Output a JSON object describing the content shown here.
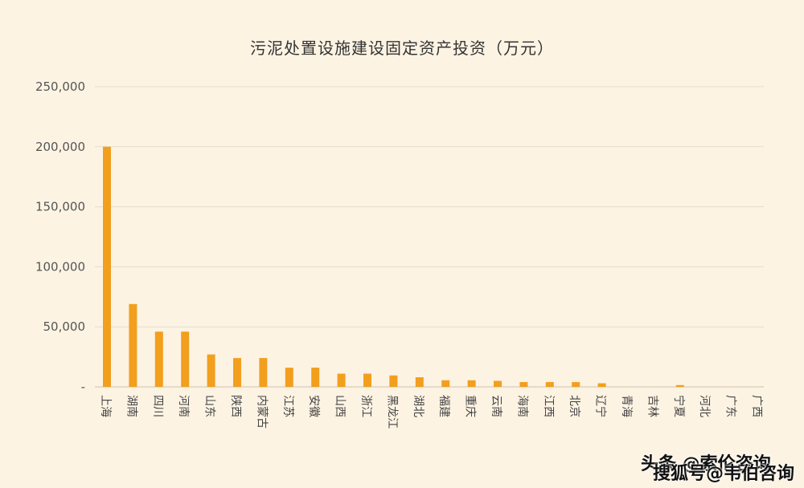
{
  "chart_data": {
    "type": "bar",
    "title": "污泥处置设施建设固定资产投资（万元）",
    "xlabel": "",
    "ylabel": "",
    "ylim": [
      0,
      250000
    ],
    "yticks": [
      0,
      50000,
      100000,
      150000,
      200000,
      250000
    ],
    "ytick_labels": [
      "-",
      "50,000",
      "100,000",
      "150,000",
      "200,000",
      "250,000"
    ],
    "grid": true,
    "bar_color": "#f29f1e",
    "categories": [
      "上海",
      "湖南",
      "四川",
      "河南",
      "山东",
      "陕西",
      "内蒙古",
      "江苏",
      "安徽",
      "山西",
      "浙江",
      "黑龙江",
      "湖北",
      "福建",
      "重庆",
      "云南",
      "海南",
      "江西",
      "北京",
      "辽宁",
      "青海",
      "吉林",
      "宁夏",
      "河北",
      "广东",
      "广西"
    ],
    "values": [
      200000,
      69000,
      46000,
      46000,
      27000,
      24000,
      24000,
      16000,
      16000,
      11000,
      11000,
      9500,
      8000,
      5500,
      5500,
      5000,
      4000,
      4000,
      4000,
      3000,
      0,
      0,
      1500,
      0,
      0,
      0
    ]
  },
  "watermark": {
    "line1": "头条 @索伦咨询",
    "line2": "搜狐号@韦伯咨询"
  }
}
